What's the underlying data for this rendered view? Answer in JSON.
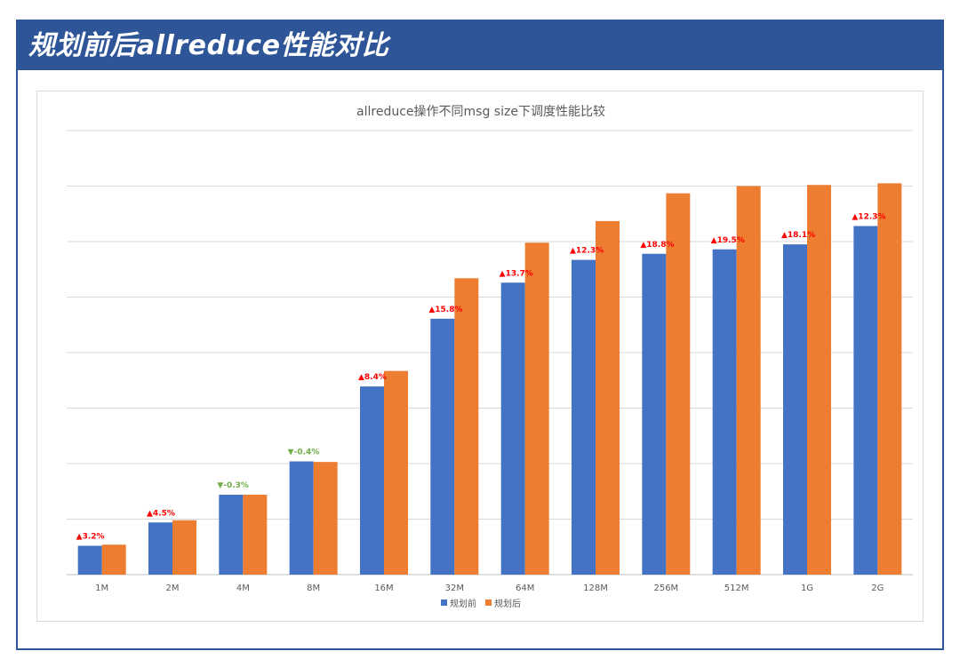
{
  "header": {
    "title": "规划前后allreduce性能对比"
  },
  "chart_data": {
    "type": "bar",
    "title": "allreduce操作不同msg size下调度性能比较",
    "categories": [
      "1M",
      "2M",
      "4M",
      "8M",
      "16M",
      "32M",
      "64M",
      "128M",
      "256M",
      "512M",
      "1G",
      "2G"
    ],
    "series": [
      {
        "name": "规划前",
        "color": "#4472c4",
        "values": [
          0.52,
          0.94,
          1.44,
          2.04,
          3.39,
          4.61,
          5.26,
          5.67,
          5.78,
          5.86,
          5.95,
          6.28
        ]
      },
      {
        "name": "规划后",
        "color": "#ed7d31",
        "values": [
          0.54,
          0.98,
          1.44,
          2.03,
          3.67,
          5.34,
          5.98,
          6.37,
          6.87,
          7.0,
          7.02,
          7.05
        ]
      }
    ],
    "change_labels": [
      "▲3.2%",
      "▲4.5%",
      "▼-0.3%",
      "▼-0.4%",
      "▲8.4%",
      "▲15.8%",
      "▲13.7%",
      "▲12.3%",
      "▲18.8%",
      "▲19.5%",
      "▲18.1%",
      "▲12.3%"
    ],
    "change_direction": [
      "up",
      "up",
      "down",
      "down",
      "up",
      "up",
      "up",
      "up",
      "up",
      "up",
      "up",
      "up"
    ],
    "up_color": "#ff0000",
    "down_color": "#70ad47",
    "ylim": [
      0,
      8
    ],
    "grid": true,
    "legend": "bottom",
    "xlabel": "",
    "ylabel": ""
  }
}
